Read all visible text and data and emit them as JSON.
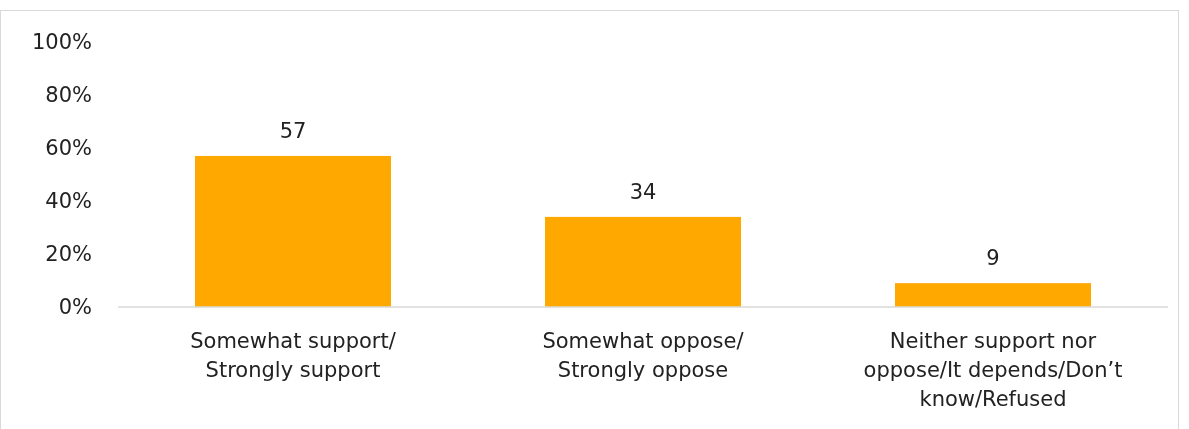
{
  "chart_data": {
    "type": "bar",
    "categories": [
      "Somewhat support/ Strongly support",
      "Somewhat oppose/ Strongly oppose",
      "Neither support nor oppose/It depends/Don’t know/Refused"
    ],
    "values": [
      57,
      34,
      9
    ],
    "color": "#ffa800",
    "ylim": [
      0,
      100
    ],
    "yticks": [
      {
        "value": 0,
        "label": "0%"
      },
      {
        "value": 20,
        "label": "20%"
      },
      {
        "value": 40,
        "label": "40%"
      },
      {
        "value": 60,
        "label": "60%"
      },
      {
        "value": 80,
        "label": "80%"
      },
      {
        "value": 100,
        "label": "100%"
      }
    ],
    "data_labels": true,
    "grid": false
  }
}
